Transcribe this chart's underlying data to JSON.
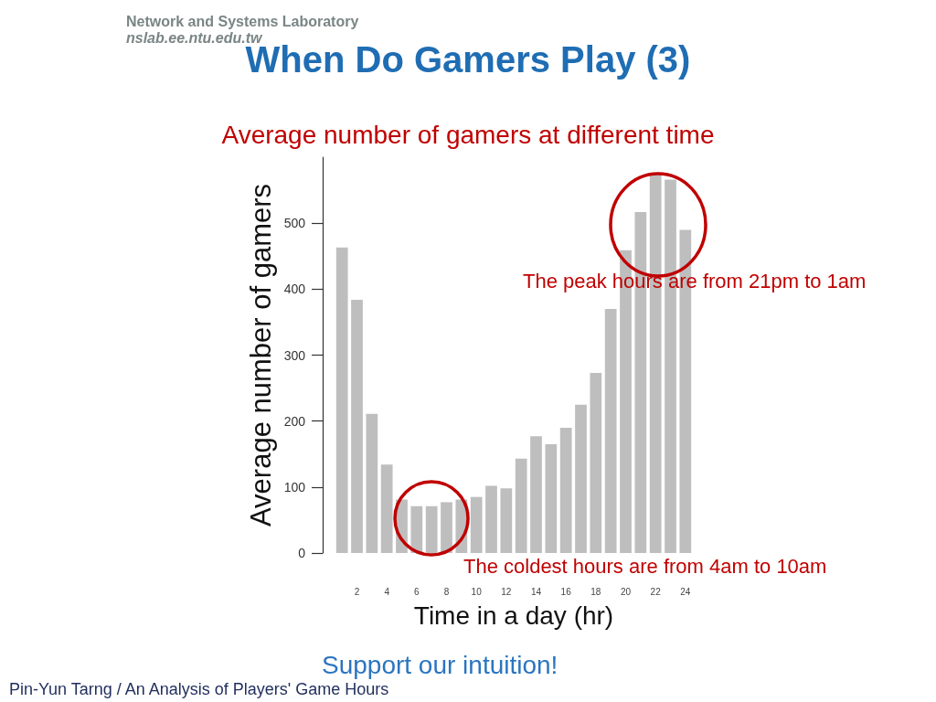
{
  "chart_data": {
    "type": "bar",
    "title": "When Do Gamers Play (3)",
    "subtitle": "Average number of gamers at different time",
    "xlabel": "Time in a day (hr)",
    "ylabel": "Average number of gamers",
    "x": [
      1,
      2,
      3,
      4,
      5,
      6,
      7,
      8,
      9,
      10,
      11,
      12,
      13,
      14,
      15,
      16,
      17,
      18,
      19,
      20,
      21,
      22,
      23,
      24
    ],
    "values": [
      463,
      384,
      211,
      134,
      81,
      71,
      71,
      77,
      81,
      85,
      102,
      98,
      143,
      177,
      165,
      190,
      225,
      273,
      370,
      459,
      517,
      573,
      566,
      490
    ],
    "color": "#bebebe",
    "xlim": [
      0.5,
      24.5
    ],
    "xticks": [
      2,
      4,
      6,
      8,
      10,
      12,
      14,
      16,
      18,
      20,
      22,
      24
    ],
    "ylim": [
      0,
      600
    ],
    "yticks": [
      0,
      100,
      200,
      300,
      400,
      500
    ],
    "annotations": [
      "Network and Systems Laboratory",
      "nslab.ee.ntu.edu.tw",
      "The peak hours are from 21pm to 1am",
      "The coldest hours are from 4am to 10am",
      "Support our intuition!",
      "Pin-Yun Tarng / An Analysis of Players' Game Hours"
    ]
  }
}
